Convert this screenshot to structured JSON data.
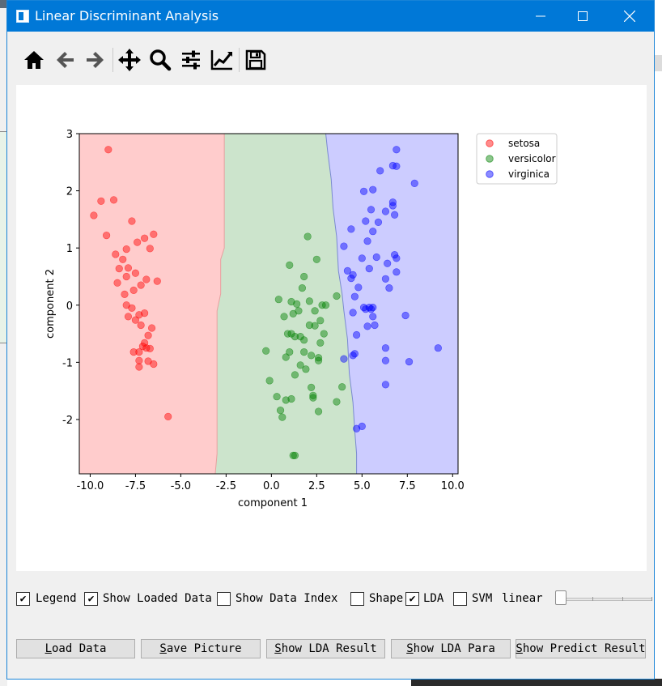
{
  "window": {
    "title": "Linear Discriminant Analysis"
  },
  "colors": {
    "titlebar": "#0078d7",
    "region_setosa": "#ffcccc",
    "region_versicolor": "#cce4cc",
    "region_virginica": "#ccccff",
    "setosa": "#ff0000",
    "versicolor": "#008000",
    "virginica": "#0000ff"
  },
  "toolbar": {
    "tools": [
      {
        "name": "home-icon"
      },
      {
        "name": "back-icon"
      },
      {
        "name": "forward-icon"
      },
      {
        "name": "pan-icon"
      },
      {
        "name": "zoom-icon"
      },
      {
        "name": "configure-subplots-icon"
      },
      {
        "name": "edit-axis-icon"
      },
      {
        "name": "save-icon"
      }
    ]
  },
  "chart_data": {
    "type": "scatter",
    "title": "",
    "xlabel": "component 1",
    "ylabel": "component 2",
    "xlim": [
      -10.6,
      10.3
    ],
    "ylim": [
      -2.95,
      3.0
    ],
    "xticks": [
      "-10.0",
      "-7.5",
      "-5.0",
      "-2.5",
      "0.0",
      "2.5",
      "5.0",
      "7.5",
      "10.0"
    ],
    "xtick_values": [
      -10,
      -7.5,
      -5,
      -2.5,
      0,
      2.5,
      5,
      7.5,
      10
    ],
    "yticks": [
      "3",
      "2",
      "1",
      "0",
      "-1",
      "-2"
    ],
    "ytick_values": [
      3,
      2,
      1,
      0,
      -1,
      -2
    ],
    "legend_position": "outside-top-right",
    "regions": [
      {
        "name": "setosa",
        "boundary": [
          [
            -2.6,
            3.0
          ],
          [
            -2.6,
            1.0
          ],
          [
            -2.8,
            0.8
          ],
          [
            -2.8,
            0.2
          ],
          [
            -3.0,
            -0.1
          ],
          [
            -3.0,
            -2.6
          ],
          [
            -3.1,
            -2.95
          ]
        ]
      },
      {
        "name": "virginica",
        "boundary": [
          [
            3.0,
            3.0
          ],
          [
            3.1,
            2.7
          ],
          [
            3.3,
            2.2
          ],
          [
            3.4,
            1.7
          ],
          [
            3.6,
            1.2
          ],
          [
            3.7,
            0.6
          ],
          [
            3.9,
            0.2
          ],
          [
            4.0,
            -0.1
          ],
          [
            4.2,
            -0.6
          ],
          [
            4.3,
            -1.2
          ],
          [
            4.5,
            -1.7
          ],
          [
            4.6,
            -2.2
          ],
          [
            4.7,
            -2.6
          ],
          [
            4.7,
            -2.95
          ]
        ]
      }
    ],
    "series": [
      {
        "name": "setosa",
        "points": [
          [
            -9.0,
            2.72
          ],
          [
            -9.4,
            1.82
          ],
          [
            -8.7,
            1.84
          ],
          [
            -9.8,
            1.57
          ],
          [
            -9.1,
            1.22
          ],
          [
            -7.7,
            1.47
          ],
          [
            -8.6,
            0.89
          ],
          [
            -8.0,
            0.98
          ],
          [
            -7.4,
            1.1
          ],
          [
            -7.0,
            1.17
          ],
          [
            -6.5,
            1.24
          ],
          [
            -6.7,
            0.99
          ],
          [
            -8.2,
            0.8
          ],
          [
            -8.4,
            0.64
          ],
          [
            -7.9,
            0.65
          ],
          [
            -8.0,
            0.5
          ],
          [
            -7.5,
            0.56
          ],
          [
            -6.9,
            0.45
          ],
          [
            -6.3,
            0.42
          ],
          [
            -7.2,
            0.35
          ],
          [
            -8.5,
            0.39
          ],
          [
            -8.1,
            0.19
          ],
          [
            -7.6,
            0.26
          ],
          [
            -8.0,
            0.0
          ],
          [
            -7.7,
            -0.05
          ],
          [
            -7.3,
            -0.17
          ],
          [
            -7.0,
            -0.14
          ],
          [
            -7.9,
            -0.2
          ],
          [
            -7.5,
            -0.26
          ],
          [
            -7.2,
            -0.35
          ],
          [
            -6.6,
            -0.4
          ],
          [
            -6.8,
            -0.53
          ],
          [
            -7.0,
            -0.66
          ],
          [
            -7.1,
            -0.72
          ],
          [
            -6.9,
            -0.75
          ],
          [
            -7.6,
            -0.82
          ],
          [
            -7.3,
            -0.82
          ],
          [
            -6.7,
            -0.76
          ],
          [
            -7.3,
            -0.97
          ],
          [
            -6.8,
            -0.98
          ],
          [
            -6.5,
            -1.03
          ],
          [
            -7.3,
            -1.08
          ],
          [
            -5.7,
            -1.95
          ]
        ]
      },
      {
        "name": "versicolor",
        "points": [
          [
            2.0,
            1.2
          ],
          [
            1.0,
            0.7
          ],
          [
            2.5,
            0.8
          ],
          [
            1.8,
            0.5
          ],
          [
            1.7,
            0.3
          ],
          [
            0.4,
            0.1
          ],
          [
            1.1,
            0.06
          ],
          [
            1.4,
            0.02
          ],
          [
            2.1,
            0.07
          ],
          [
            2.8,
            0.0
          ],
          [
            3.6,
            0.16
          ],
          [
            3.0,
            0.0
          ],
          [
            1.5,
            -0.1
          ],
          [
            1.2,
            -0.15
          ],
          [
            2.4,
            -0.1
          ],
          [
            0.7,
            -0.2
          ],
          [
            2.7,
            -0.27
          ],
          [
            2.1,
            -0.35
          ],
          [
            2.4,
            -0.36
          ],
          [
            1.1,
            -0.5
          ],
          [
            1.3,
            -0.55
          ],
          [
            0.9,
            -0.5
          ],
          [
            1.6,
            -0.55
          ],
          [
            2.9,
            -0.5
          ],
          [
            1.8,
            -0.61
          ],
          [
            2.7,
            -0.66
          ],
          [
            1.0,
            -0.82
          ],
          [
            1.8,
            -0.82
          ],
          [
            0.8,
            -0.91
          ],
          [
            2.2,
            -0.88
          ],
          [
            2.6,
            -0.92
          ],
          [
            2.6,
            -0.97
          ],
          [
            -0.3,
            -0.8
          ],
          [
            1.6,
            -1.05
          ],
          [
            1.9,
            -1.12
          ],
          [
            1.3,
            -1.22
          ],
          [
            -0.1,
            -1.32
          ],
          [
            2.2,
            -1.44
          ],
          [
            3.9,
            -1.43
          ],
          [
            0.3,
            -1.6
          ],
          [
            2.3,
            -1.58
          ],
          [
            2.3,
            -1.62
          ],
          [
            0.8,
            -1.66
          ],
          [
            1.1,
            -1.64
          ],
          [
            3.6,
            -1.69
          ],
          [
            0.5,
            -1.84
          ],
          [
            2.6,
            -1.86
          ],
          [
            0.6,
            -1.96
          ],
          [
            1.2,
            -2.63
          ],
          [
            1.3,
            -2.63
          ]
        ]
      },
      {
        "name": "virginica",
        "points": [
          [
            6.9,
            2.72
          ],
          [
            6.7,
            2.44
          ],
          [
            6.9,
            2.43
          ],
          [
            6.0,
            2.35
          ],
          [
            7.9,
            2.13
          ],
          [
            5.6,
            2.02
          ],
          [
            5.1,
            1.99
          ],
          [
            6.7,
            1.8
          ],
          [
            6.7,
            1.74
          ],
          [
            5.5,
            1.67
          ],
          [
            6.3,
            1.64
          ],
          [
            6.8,
            1.58
          ],
          [
            5.2,
            1.47
          ],
          [
            4.4,
            1.33
          ],
          [
            5.6,
            1.29
          ],
          [
            5.9,
            1.45
          ],
          [
            5.3,
            1.12
          ],
          [
            4.0,
            1.03
          ],
          [
            5.8,
            0.84
          ],
          [
            6.8,
            0.88
          ],
          [
            6.9,
            0.82
          ],
          [
            5.0,
            0.82
          ],
          [
            5.4,
            0.64
          ],
          [
            6.4,
            0.73
          ],
          [
            4.2,
            0.6
          ],
          [
            4.5,
            0.53
          ],
          [
            6.9,
            0.58
          ],
          [
            4.4,
            0.47
          ],
          [
            6.3,
            0.46
          ],
          [
            6.5,
            0.3
          ],
          [
            4.8,
            0.31
          ],
          [
            4.6,
            0.15
          ],
          [
            5.1,
            -0.04
          ],
          [
            5.4,
            -0.04
          ],
          [
            5.6,
            -0.04
          ],
          [
            5.2,
            -0.07
          ],
          [
            5.5,
            -0.07
          ],
          [
            4.5,
            -0.13
          ],
          [
            7.4,
            -0.18
          ],
          [
            5.6,
            -0.2
          ],
          [
            5.7,
            -0.35
          ],
          [
            5.3,
            -0.37
          ],
          [
            4.7,
            -0.52
          ],
          [
            9.2,
            -0.75
          ],
          [
            6.3,
            -0.75
          ],
          [
            4.6,
            -0.85
          ],
          [
            4.5,
            -0.88
          ],
          [
            4.0,
            -0.94
          ],
          [
            6.3,
            -0.97
          ],
          [
            7.6,
            -0.99
          ],
          [
            6.3,
            -1.39
          ],
          [
            5.0,
            -2.12
          ],
          [
            4.7,
            -2.16
          ]
        ]
      }
    ],
    "legend": [
      {
        "label": "setosa",
        "color": "#ff0000"
      },
      {
        "label": "versicolor",
        "color": "#008000"
      },
      {
        "label": "virginica",
        "color": "#0000ff"
      }
    ]
  },
  "controls": {
    "legend_cb": {
      "label": "Legend",
      "checked": true
    },
    "loaded_cb": {
      "label": "Show Loaded Data",
      "checked": true
    },
    "index_cb": {
      "label": "Show Data Index",
      "checked": false
    },
    "shape_cb": {
      "label": "Shape",
      "checked": false
    },
    "lda_cb": {
      "label": "LDA",
      "checked": true
    },
    "svm_cb": {
      "label": "SVM",
      "checked": false
    },
    "kernel_label": "linear",
    "slider_value": 0
  },
  "buttons": {
    "load_data": "Load Data",
    "save_picture": "Save Picture",
    "show_lda_result": "Show LDA Result",
    "show_lda_para": "Show LDA Para",
    "show_predict_result": "Show Predict Result"
  }
}
